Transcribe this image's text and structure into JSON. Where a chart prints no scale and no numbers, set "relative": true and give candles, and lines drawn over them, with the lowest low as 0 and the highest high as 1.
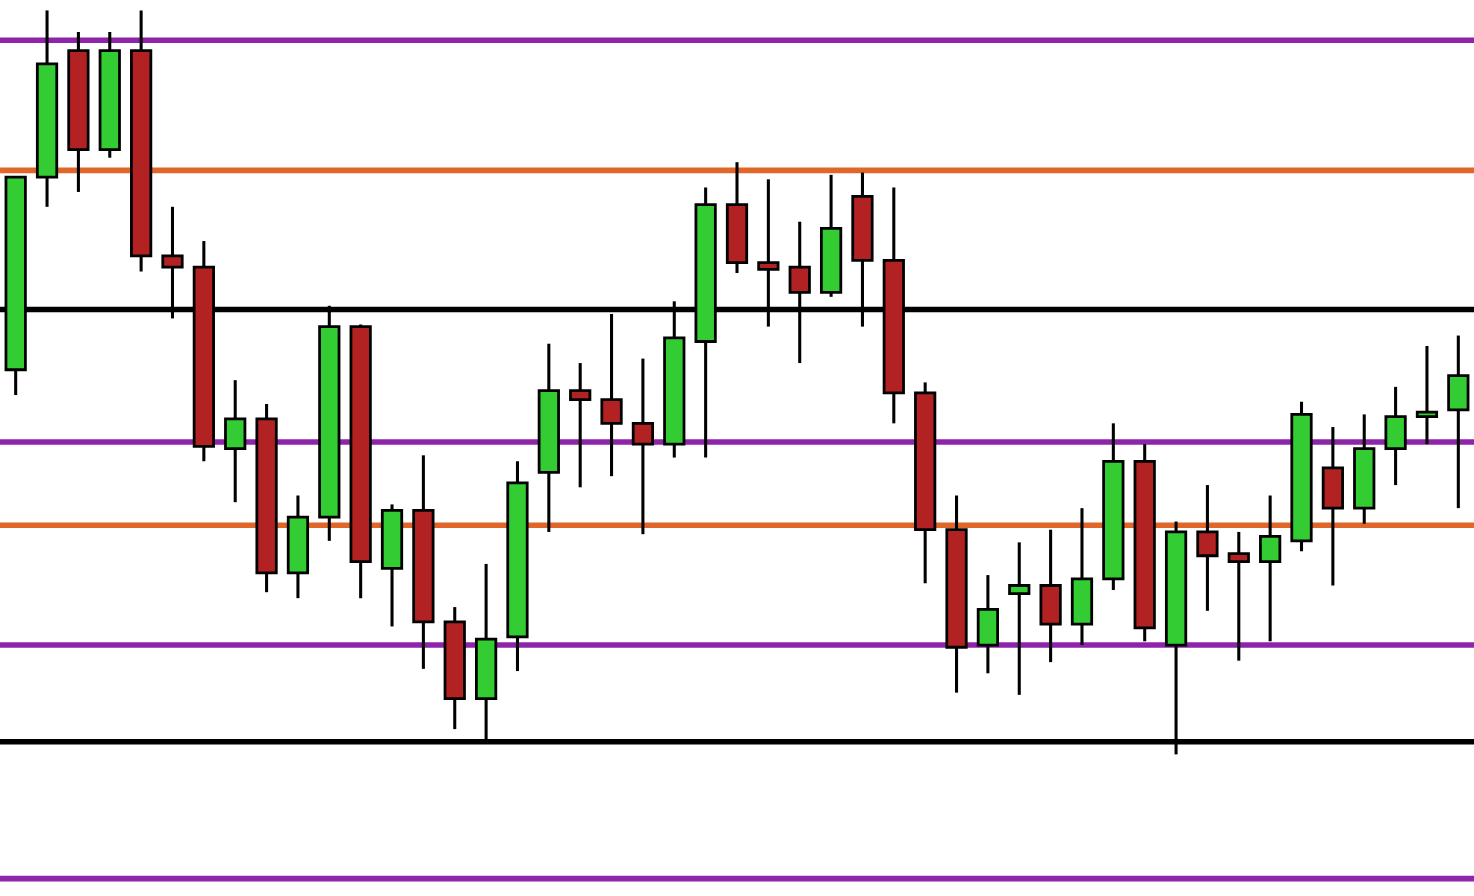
{
  "chart_data": {
    "type": "candlestick",
    "relative": true,
    "categories": [
      null,
      null,
      null,
      null,
      null,
      null,
      null,
      null,
      null,
      null,
      null,
      null,
      null,
      null,
      null,
      null,
      null,
      null,
      null,
      null,
      null,
      null,
      null,
      null,
      null,
      null,
      null,
      null,
      null,
      null,
      null,
      null,
      null,
      null,
      null,
      null,
      null,
      null,
      null,
      null,
      null,
      null,
      null,
      null,
      null,
      null,
      null
    ],
    "ohlc": [
      [
        0.517,
        0.776,
        0.483,
        0.776
      ],
      [
        0.776,
        1.0,
        0.736,
        0.928
      ],
      [
        0.946,
        0.971,
        0.756,
        0.813
      ],
      [
        0.813,
        0.971,
        0.802,
        0.946
      ],
      [
        0.946,
        1.0,
        0.649,
        0.67
      ],
      [
        0.67,
        0.736,
        0.586,
        0.655
      ],
      [
        0.655,
        0.69,
        0.394,
        0.414
      ],
      [
        0.411,
        0.503,
        0.339,
        0.451
      ],
      [
        0.451,
        0.471,
        0.218,
        0.244
      ],
      [
        0.244,
        0.348,
        0.21,
        0.319
      ],
      [
        0.319,
        0.603,
        0.287,
        0.575
      ],
      [
        0.575,
        0.578,
        0.21,
        0.259
      ],
      [
        0.25,
        0.336,
        0.172,
        0.328
      ],
      [
        0.328,
        0.402,
        0.115,
        0.178
      ],
      [
        0.178,
        0.198,
        0.034,
        0.075
      ],
      [
        0.075,
        0.256,
        0.02,
        0.155
      ],
      [
        0.158,
        0.394,
        0.112,
        0.365
      ],
      [
        0.379,
        0.552,
        0.299,
        0.489
      ],
      [
        0.489,
        0.526,
        0.359,
        0.477
      ],
      [
        0.477,
        0.592,
        0.374,
        0.445
      ],
      [
        0.445,
        0.532,
        0.296,
        0.417
      ],
      [
        0.417,
        0.609,
        0.399,
        0.56
      ],
      [
        0.555,
        0.762,
        0.399,
        0.739
      ],
      [
        0.739,
        0.796,
        0.647,
        0.661
      ],
      [
        0.661,
        0.773,
        0.575,
        0.652
      ],
      [
        0.655,
        0.716,
        0.526,
        0.621
      ],
      [
        0.621,
        0.779,
        0.615,
        0.707
      ],
      [
        0.75,
        0.782,
        0.575,
        0.664
      ],
      [
        0.664,
        0.762,
        0.445,
        0.486
      ],
      [
        0.486,
        0.5,
        0.23,
        0.302
      ],
      [
        0.302,
        0.348,
        0.083,
        0.144
      ],
      [
        0.147,
        0.241,
        0.109,
        0.195
      ],
      [
        0.216,
        0.285,
        0.08,
        0.227
      ],
      [
        0.227,
        0.302,
        0.124,
        0.175
      ],
      [
        0.175,
        0.331,
        0.147,
        0.236
      ],
      [
        0.236,
        0.445,
        0.221,
        0.394
      ],
      [
        0.394,
        0.417,
        0.152,
        0.17
      ],
      [
        0.147,
        0.313,
        0.0,
        0.299
      ],
      [
        0.299,
        0.362,
        0.193,
        0.267
      ],
      [
        0.27,
        0.299,
        0.126,
        0.259
      ],
      [
        0.259,
        0.348,
        0.152,
        0.293
      ],
      [
        0.287,
        0.474,
        0.273,
        0.457
      ],
      [
        0.385,
        0.44,
        0.227,
        0.331
      ],
      [
        0.331,
        0.457,
        0.31,
        0.411
      ],
      [
        0.411,
        0.494,
        0.362,
        0.454
      ],
      [
        0.454,
        0.549,
        0.417,
        0.46
      ],
      [
        0.463,
        0.563,
        0.331,
        0.509
      ]
    ],
    "colors": [
      "#33cc33",
      "#33cc33",
      "#b22222",
      "#33cc33",
      "#b22222",
      "#b22222",
      "#b22222",
      "#33cc33",
      "#b22222",
      "#33cc33",
      "#33cc33",
      "#b22222",
      "#33cc33",
      "#b22222",
      "#b22222",
      "#33cc33",
      "#33cc33",
      "#33cc33",
      "#b22222",
      "#b22222",
      "#b22222",
      "#33cc33",
      "#33cc33",
      "#b22222",
      "#b22222",
      "#b22222",
      "#33cc33",
      "#b22222",
      "#b22222",
      "#b22222",
      "#b22222",
      "#33cc33",
      "#33cc33",
      "#b22222",
      "#33cc33",
      "#33cc33",
      "#b22222",
      "#33cc33",
      "#b22222",
      "#b22222",
      "#33cc33",
      "#33cc33",
      "#b22222",
      "#33cc33",
      "#33cc33",
      "#33cc33",
      "#33cc33"
    ],
    "ref_lines": [
      {
        "axis": "y",
        "value": 0.96,
        "color": "#8e24aa"
      },
      {
        "axis": "y",
        "value": 0.785,
        "color": "#e0662a"
      },
      {
        "axis": "y",
        "value": 0.598,
        "color": "#000000"
      },
      {
        "axis": "y",
        "value": 0.42,
        "color": "#8e24aa"
      },
      {
        "axis": "y",
        "value": 0.308,
        "color": "#e0662a"
      },
      {
        "axis": "y",
        "value": 0.147,
        "color": "#8e24aa"
      },
      {
        "axis": "y",
        "value": 0.017,
        "color": "#000000"
      },
      {
        "axis": "y",
        "value": -0.167,
        "color": "#8e24aa"
      }
    ]
  }
}
